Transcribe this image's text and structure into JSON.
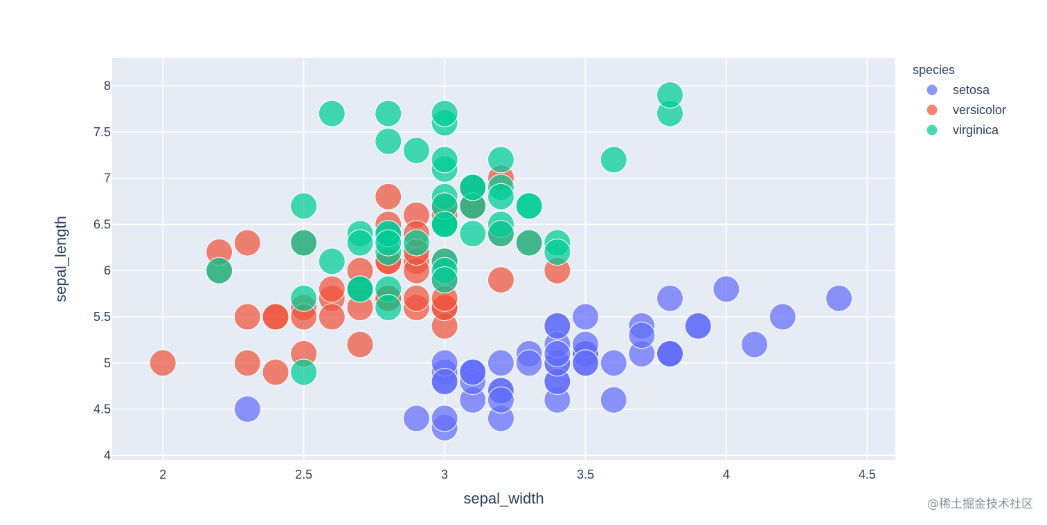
{
  "watermark": "@稀土掘金技术社区",
  "chart_data": {
    "type": "scatter",
    "title": "",
    "xlabel": "sepal_width",
    "ylabel": "sepal_length",
    "xlim": [
      1.82,
      4.6
    ],
    "ylim": [
      3.95,
      8.3
    ],
    "x_ticks": [
      2,
      2.5,
      3,
      3.5,
      4,
      4.5
    ],
    "x_tick_labels": [
      "2",
      "2.5",
      "3",
      "3.5",
      "4",
      "4.5"
    ],
    "y_ticks": [
      4,
      4.5,
      5,
      5.5,
      6,
      6.5,
      7,
      7.5,
      8
    ],
    "y_tick_labels": [
      "4",
      "4.5",
      "5",
      "5.5",
      "6",
      "6.5",
      "7",
      "7.5",
      "8"
    ],
    "grid": true,
    "legend": {
      "title": "species",
      "position": "right"
    },
    "plot_bg": "#e5ecf6",
    "series": [
      {
        "name": "setosa",
        "color": "#636efa",
        "points": [
          [
            3.5,
            5.1
          ],
          [
            3.0,
            4.9
          ],
          [
            3.2,
            4.7
          ],
          [
            3.1,
            4.6
          ],
          [
            3.6,
            5.0
          ],
          [
            3.9,
            5.4
          ],
          [
            3.4,
            4.6
          ],
          [
            3.4,
            5.0
          ],
          [
            2.9,
            4.4
          ],
          [
            3.1,
            4.9
          ],
          [
            3.7,
            5.4
          ],
          [
            3.4,
            4.8
          ],
          [
            3.0,
            4.8
          ],
          [
            3.0,
            4.3
          ],
          [
            4.0,
            5.8
          ],
          [
            4.4,
            5.7
          ],
          [
            3.9,
            5.4
          ],
          [
            3.5,
            5.1
          ],
          [
            3.8,
            5.7
          ],
          [
            3.8,
            5.1
          ],
          [
            3.4,
            5.4
          ],
          [
            3.7,
            5.1
          ],
          [
            3.6,
            4.6
          ],
          [
            3.3,
            5.1
          ],
          [
            3.4,
            4.8
          ],
          [
            3.0,
            5.0
          ],
          [
            3.4,
            5.0
          ],
          [
            3.5,
            5.2
          ],
          [
            3.4,
            5.2
          ],
          [
            3.2,
            4.7
          ],
          [
            3.1,
            4.8
          ],
          [
            3.4,
            5.4
          ],
          [
            4.1,
            5.2
          ],
          [
            4.2,
            5.5
          ],
          [
            3.1,
            4.9
          ],
          [
            3.2,
            5.0
          ],
          [
            3.5,
            5.5
          ],
          [
            3.1,
            4.9
          ],
          [
            3.0,
            4.4
          ],
          [
            3.4,
            5.1
          ],
          [
            3.5,
            5.0
          ],
          [
            2.3,
            4.5
          ],
          [
            3.2,
            4.4
          ],
          [
            3.5,
            5.0
          ],
          [
            3.8,
            5.1
          ],
          [
            3.0,
            4.8
          ],
          [
            3.8,
            5.1
          ],
          [
            3.2,
            4.6
          ],
          [
            3.7,
            5.3
          ],
          [
            3.3,
            5.0
          ]
        ]
      },
      {
        "name": "versicolor",
        "color": "#ef553b",
        "points": [
          [
            3.2,
            7.0
          ],
          [
            3.2,
            6.4
          ],
          [
            3.1,
            6.9
          ],
          [
            2.3,
            5.5
          ],
          [
            2.8,
            6.5
          ],
          [
            2.8,
            5.7
          ],
          [
            3.3,
            6.3
          ],
          [
            2.4,
            4.9
          ],
          [
            2.9,
            6.6
          ],
          [
            2.7,
            5.2
          ],
          [
            2.0,
            5.0
          ],
          [
            3.0,
            5.9
          ],
          [
            2.2,
            6.0
          ],
          [
            2.9,
            6.1
          ],
          [
            2.9,
            5.6
          ],
          [
            3.1,
            6.7
          ],
          [
            3.0,
            5.6
          ],
          [
            2.7,
            5.8
          ],
          [
            2.2,
            6.2
          ],
          [
            2.5,
            5.6
          ],
          [
            3.2,
            5.9
          ],
          [
            2.8,
            6.1
          ],
          [
            2.5,
            6.3
          ],
          [
            2.8,
            6.1
          ],
          [
            2.9,
            6.4
          ],
          [
            3.0,
            6.6
          ],
          [
            2.8,
            6.8
          ],
          [
            3.0,
            6.7
          ],
          [
            2.9,
            6.0
          ],
          [
            2.6,
            5.7
          ],
          [
            2.4,
            5.5
          ],
          [
            2.4,
            5.5
          ],
          [
            2.7,
            5.8
          ],
          [
            2.7,
            6.0
          ],
          [
            3.0,
            5.4
          ],
          [
            3.4,
            6.0
          ],
          [
            3.1,
            6.7
          ],
          [
            2.3,
            6.3
          ],
          [
            3.0,
            5.6
          ],
          [
            2.5,
            5.5
          ],
          [
            2.6,
            5.5
          ],
          [
            3.0,
            6.1
          ],
          [
            2.6,
            5.8
          ],
          [
            2.3,
            5.0
          ],
          [
            2.7,
            5.6
          ],
          [
            3.0,
            5.7
          ],
          [
            2.9,
            5.7
          ],
          [
            2.9,
            6.2
          ],
          [
            2.5,
            5.1
          ],
          [
            2.8,
            5.7
          ]
        ]
      },
      {
        "name": "virginica",
        "color": "#00cc96",
        "points": [
          [
            3.3,
            6.3
          ],
          [
            2.7,
            5.8
          ],
          [
            3.0,
            7.1
          ],
          [
            2.9,
            6.3
          ],
          [
            3.0,
            6.5
          ],
          [
            3.0,
            7.6
          ],
          [
            2.5,
            4.9
          ],
          [
            2.9,
            7.3
          ],
          [
            2.5,
            6.7
          ],
          [
            3.6,
            7.2
          ],
          [
            3.2,
            6.5
          ],
          [
            2.7,
            6.4
          ],
          [
            3.0,
            6.8
          ],
          [
            2.5,
            5.7
          ],
          [
            2.8,
            5.8
          ],
          [
            3.2,
            6.4
          ],
          [
            3.0,
            6.5
          ],
          [
            3.8,
            7.7
          ],
          [
            2.6,
            7.7
          ],
          [
            2.2,
            6.0
          ],
          [
            3.2,
            6.9
          ],
          [
            2.8,
            5.6
          ],
          [
            2.8,
            7.7
          ],
          [
            2.7,
            6.3
          ],
          [
            3.3,
            6.7
          ],
          [
            3.2,
            7.2
          ],
          [
            2.8,
            6.2
          ],
          [
            3.0,
            6.1
          ],
          [
            2.8,
            6.4
          ],
          [
            3.0,
            7.2
          ],
          [
            2.8,
            7.4
          ],
          [
            3.8,
            7.9
          ],
          [
            2.8,
            6.4
          ],
          [
            2.8,
            6.3
          ],
          [
            2.6,
            6.1
          ],
          [
            3.0,
            7.7
          ],
          [
            3.4,
            6.3
          ],
          [
            3.1,
            6.4
          ],
          [
            3.0,
            6.0
          ],
          [
            3.1,
            6.9
          ],
          [
            3.1,
            6.7
          ],
          [
            3.1,
            6.9
          ],
          [
            2.7,
            5.8
          ],
          [
            3.2,
            6.8
          ],
          [
            3.3,
            6.7
          ],
          [
            3.0,
            6.7
          ],
          [
            2.5,
            6.3
          ],
          [
            3.0,
            6.5
          ],
          [
            3.4,
            6.2
          ],
          [
            3.0,
            5.9
          ]
        ]
      }
    ]
  }
}
